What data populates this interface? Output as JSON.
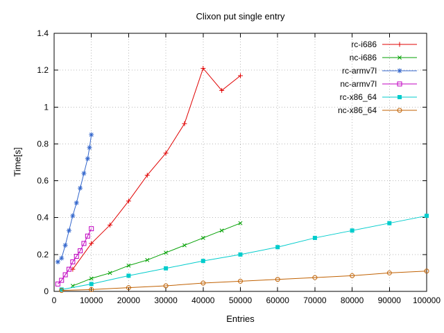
{
  "chart_data": {
    "type": "line",
    "title": "Clixon put single entry",
    "xlabel": "Entries",
    "ylabel": "Time[s]",
    "xlim": [
      0,
      100000
    ],
    "ylim": [
      0,
      1.4
    ],
    "x_ticks": [
      0,
      10000,
      20000,
      30000,
      40000,
      50000,
      60000,
      70000,
      80000,
      90000,
      100000
    ],
    "y_ticks": [
      0,
      0.2,
      0.4,
      0.6,
      0.8,
      1,
      1.2,
      1.4
    ],
    "grid": true,
    "legend_position": "top-right-inside",
    "colors": {
      "grid": "#b8b8b8",
      "border": "#000000"
    },
    "series": [
      {
        "name": "rc-i686",
        "color": "#e00000",
        "marker": "plus",
        "x": [
          5000,
          10000,
          15000,
          20000,
          25000,
          30000,
          35000,
          40000,
          45000,
          50000
        ],
        "y": [
          0.12,
          0.26,
          0.36,
          0.49,
          0.63,
          0.75,
          0.91,
          1.21,
          1.09,
          1.17
        ]
      },
      {
        "name": "nc-i686",
        "color": "#00a000",
        "marker": "x",
        "x": [
          5000,
          10000,
          15000,
          20000,
          25000,
          30000,
          35000,
          40000,
          45000,
          50000
        ],
        "y": [
          0.03,
          0.07,
          0.1,
          0.14,
          0.17,
          0.21,
          0.25,
          0.29,
          0.33,
          0.37
        ]
      },
      {
        "name": "rc-armv7l",
        "color": "#3366cc",
        "marker": "asterisk",
        "x": [
          1000,
          2000,
          3000,
          4000,
          5000,
          6000,
          7000,
          8000,
          9000,
          9500,
          10000
        ],
        "y": [
          0.16,
          0.18,
          0.25,
          0.33,
          0.41,
          0.48,
          0.56,
          0.64,
          0.72,
          0.78,
          0.85
        ]
      },
      {
        "name": "nc-armv7l",
        "color": "#c000c0",
        "marker": "square-open",
        "x": [
          1000,
          2000,
          3000,
          4000,
          5000,
          6000,
          7000,
          8000,
          9000,
          10000
        ],
        "y": [
          0.04,
          0.06,
          0.09,
          0.12,
          0.16,
          0.19,
          0.22,
          0.26,
          0.3,
          0.34
        ]
      },
      {
        "name": "rc-x86_64",
        "color": "#00cccc",
        "marker": "square-filled",
        "x": [
          2000,
          10000,
          20000,
          30000,
          40000,
          50000,
          60000,
          70000,
          80000,
          90000,
          100000
        ],
        "y": [
          0.01,
          0.04,
          0.085,
          0.125,
          0.165,
          0.2,
          0.24,
          0.29,
          0.33,
          0.37,
          0.41
        ]
      },
      {
        "name": "nc-x86_64",
        "color": "#c06000",
        "marker": "circle-open",
        "x": [
          2000,
          10000,
          20000,
          30000,
          40000,
          50000,
          60000,
          70000,
          80000,
          90000,
          100000
        ],
        "y": [
          0.005,
          0.01,
          0.02,
          0.03,
          0.045,
          0.055,
          0.065,
          0.075,
          0.085,
          0.1,
          0.11
        ]
      }
    ]
  }
}
